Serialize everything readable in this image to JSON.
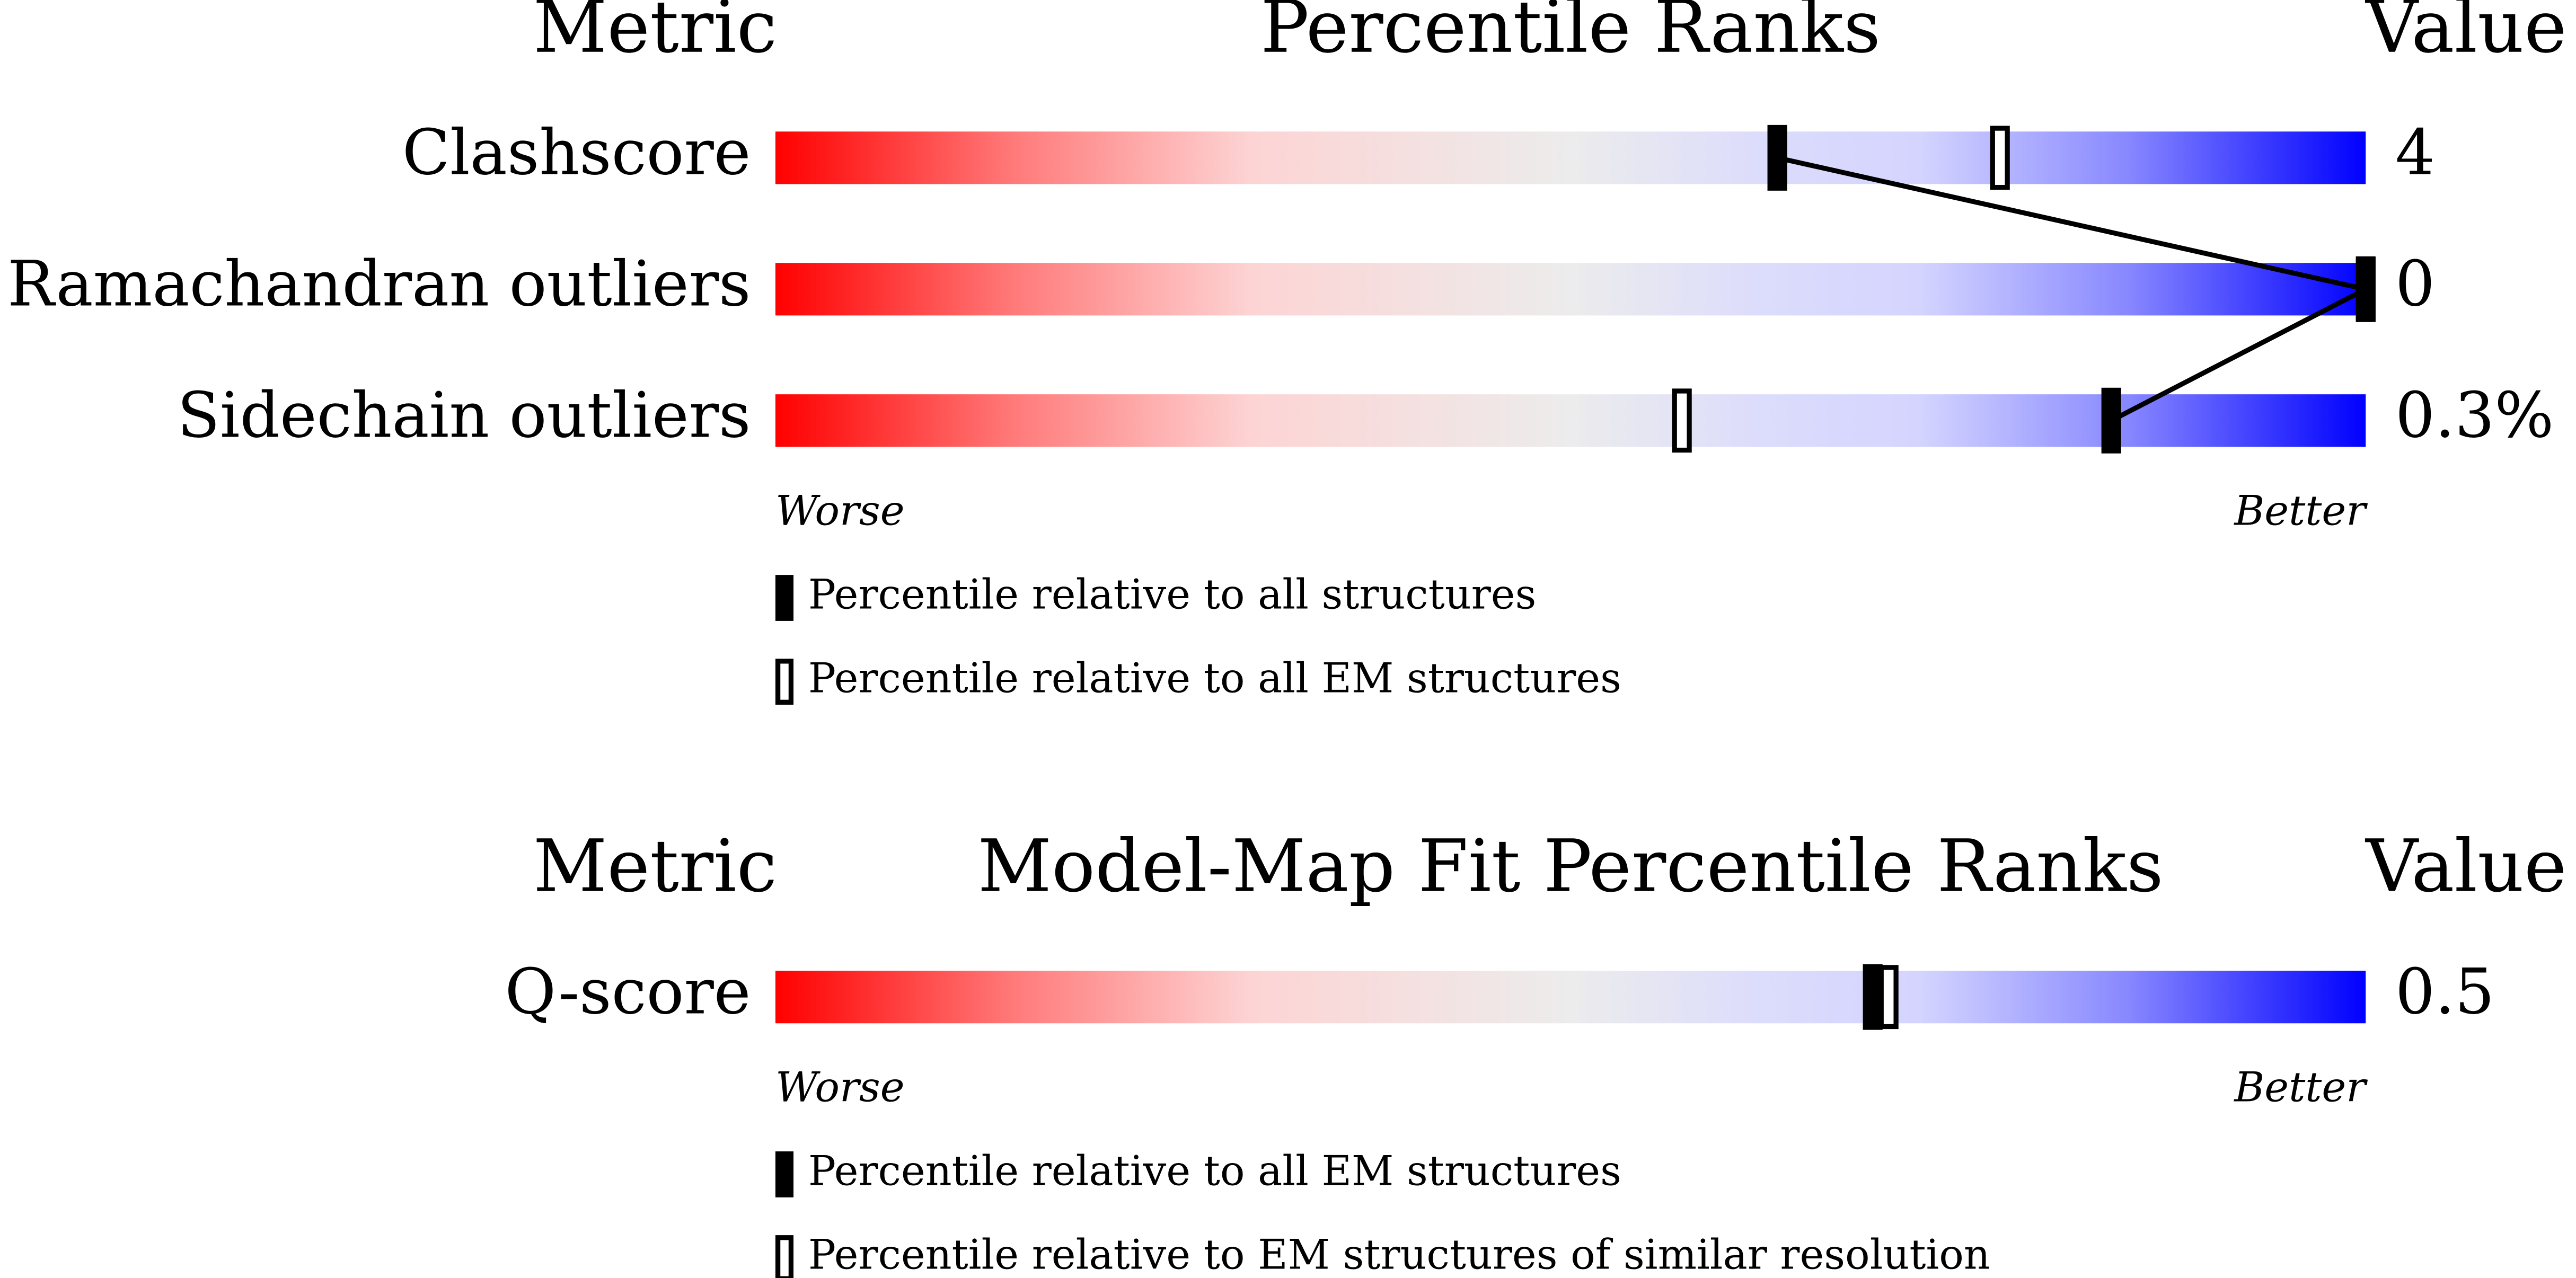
{
  "chart_data": [
    {
      "type": "percentile_slider",
      "metric_header": "Metric",
      "title": "Percentile Ranks",
      "value_header": "Value",
      "categories": [
        "Clashscore",
        "Ramachandran outliers",
        "Sidechain outliers"
      ],
      "metric_values": [
        "4",
        "0",
        "0.3%"
      ],
      "series": [
        {
          "name": "Percentile relative to all structures",
          "style": "filled",
          "color": "#000000",
          "values": [
            63,
            100,
            84
          ]
        },
        {
          "name": "Percentile relative to all EM structures",
          "style": "open",
          "color": "#000000",
          "values": [
            77,
            100,
            57
          ]
        }
      ],
      "connect": true,
      "xlabel_left": "Worse",
      "xlabel_right": "Better",
      "xlim": [
        0,
        100
      ]
    },
    {
      "type": "percentile_slider",
      "metric_header": "Metric",
      "title": "Model-Map Fit Percentile Ranks",
      "value_header": "Value",
      "categories": [
        "Q-score"
      ],
      "metric_values": [
        "0.5"
      ],
      "series": [
        {
          "name": "Percentile relative to all EM structures",
          "style": "filled",
          "color": "#000000",
          "values": [
            69
          ]
        },
        {
          "name": "Percentile relative to EM structures of similar resolution",
          "style": "open",
          "color": "#000000",
          "values": [
            70
          ]
        }
      ],
      "connect": false,
      "xlabel_left": "Worse",
      "xlabel_right": "Better",
      "xlim": [
        0,
        100
      ]
    }
  ]
}
